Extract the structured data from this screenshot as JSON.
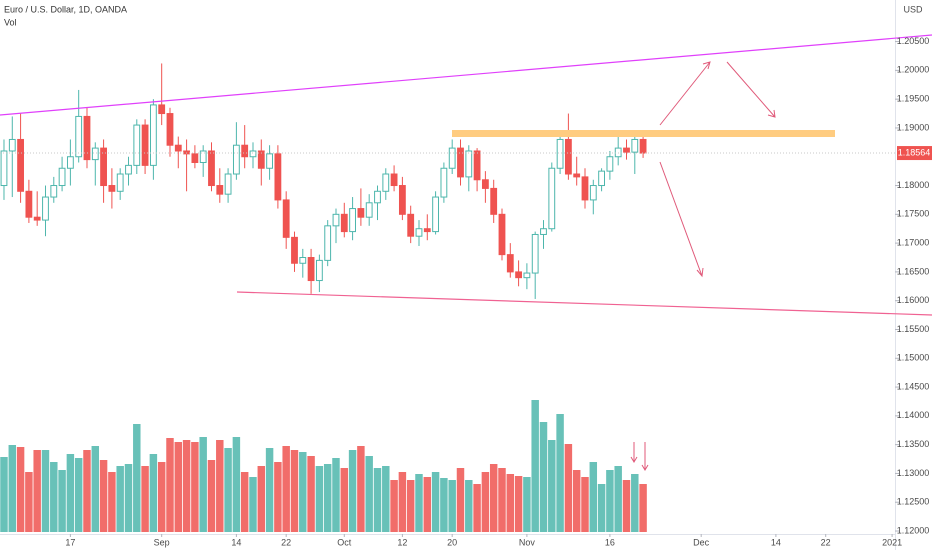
{
  "chart_data": {
    "type": "candlestick",
    "title": "Euro / U.S. Dollar, 1D, OANDA",
    "volume_label": "Vol",
    "currency": "USD",
    "up_color": "#4db6ac",
    "down_color": "#ef5350",
    "grid": false,
    "ohlc": [
      [
        1.18,
        1.188,
        1.1775,
        1.186
      ],
      [
        1.186,
        1.192,
        1.178,
        1.188
      ],
      [
        1.188,
        1.1925,
        1.177,
        1.179
      ],
      [
        1.179,
        1.181,
        1.1735,
        1.1745
      ],
      [
        1.1745,
        1.179,
        1.173,
        1.174
      ],
      [
        1.174,
        1.18,
        1.1712,
        1.178
      ],
      [
        1.178,
        1.1815,
        1.177,
        1.18
      ],
      [
        1.18,
        1.185,
        1.179,
        1.183
      ],
      [
        1.183,
        1.188,
        1.18,
        1.185
      ],
      [
        1.185,
        1.1966,
        1.184,
        1.192
      ],
      [
        1.192,
        1.1935,
        1.183,
        1.1845
      ],
      [
        1.1845,
        1.1875,
        1.18,
        1.1865
      ],
      [
        1.1865,
        1.188,
        1.177,
        1.18
      ],
      [
        1.18,
        1.183,
        1.176,
        1.179
      ],
      [
        1.179,
        1.183,
        1.1775,
        1.182
      ],
      [
        1.182,
        1.185,
        1.18,
        1.1835
      ],
      [
        1.1835,
        1.1915,
        1.182,
        1.1905
      ],
      [
        1.1905,
        1.1915,
        1.182,
        1.1835
      ],
      [
        1.1835,
        1.195,
        1.181,
        1.194
      ],
      [
        1.194,
        1.2012,
        1.1905,
        1.1925
      ],
      [
        1.1925,
        1.1935,
        1.185,
        1.187
      ],
      [
        1.187,
        1.1885,
        1.183,
        1.186
      ],
      [
        1.186,
        1.188,
        1.179,
        1.1855
      ],
      [
        1.1855,
        1.187,
        1.183,
        1.184
      ],
      [
        1.184,
        1.187,
        1.1815,
        1.186
      ],
      [
        1.186,
        1.1875,
        1.179,
        1.18
      ],
      [
        1.18,
        1.183,
        1.177,
        1.1785
      ],
      [
        1.1785,
        1.183,
        1.177,
        1.182
      ],
      [
        1.182,
        1.191,
        1.181,
        1.187
      ],
      [
        1.187,
        1.1905,
        1.183,
        1.185
      ],
      [
        1.185,
        1.1875,
        1.183,
        1.186
      ],
      [
        1.186,
        1.188,
        1.18,
        1.183
      ],
      [
        1.183,
        1.187,
        1.181,
        1.1855
      ],
      [
        1.1855,
        1.187,
        1.176,
        1.1775
      ],
      [
        1.1775,
        1.179,
        1.169,
        1.171
      ],
      [
        1.171,
        1.172,
        1.165,
        1.1665
      ],
      [
        1.1665,
        1.169,
        1.164,
        1.1675
      ],
      [
        1.1675,
        1.169,
        1.1612,
        1.1635
      ],
      [
        1.1635,
        1.168,
        1.1615,
        1.167
      ],
      [
        1.167,
        1.174,
        1.166,
        1.173
      ],
      [
        1.173,
        1.176,
        1.17,
        1.175
      ],
      [
        1.175,
        1.177,
        1.171,
        1.172
      ],
      [
        1.172,
        1.178,
        1.1705,
        1.176
      ],
      [
        1.176,
        1.1795,
        1.173,
        1.1745
      ],
      [
        1.1745,
        1.1785,
        1.173,
        1.177
      ],
      [
        1.177,
        1.18,
        1.174,
        1.179
      ],
      [
        1.179,
        1.183,
        1.1775,
        1.182
      ],
      [
        1.182,
        1.1835,
        1.179,
        1.18
      ],
      [
        1.18,
        1.1815,
        1.174,
        1.175
      ],
      [
        1.175,
        1.1765,
        1.17,
        1.1712
      ],
      [
        1.1712,
        1.174,
        1.1695,
        1.1725
      ],
      [
        1.1725,
        1.175,
        1.1705,
        1.172
      ],
      [
        1.172,
        1.179,
        1.1715,
        1.178
      ],
      [
        1.178,
        1.184,
        1.177,
        1.183
      ],
      [
        1.183,
        1.188,
        1.182,
        1.1865
      ],
      [
        1.1865,
        1.188,
        1.18,
        1.1815
      ],
      [
        1.1815,
        1.187,
        1.179,
        1.186
      ],
      [
        1.186,
        1.1865,
        1.179,
        1.181
      ],
      [
        1.181,
        1.1825,
        1.177,
        1.1795
      ],
      [
        1.1795,
        1.181,
        1.1735,
        1.175
      ],
      [
        1.175,
        1.176,
        1.167,
        1.168
      ],
      [
        1.168,
        1.17,
        1.164,
        1.165
      ],
      [
        1.165,
        1.167,
        1.1625,
        1.164
      ],
      [
        1.164,
        1.1665,
        1.162,
        1.1648
      ],
      [
        1.1648,
        1.172,
        1.1603,
        1.1715
      ],
      [
        1.1715,
        1.174,
        1.169,
        1.1725
      ],
      [
        1.1725,
        1.184,
        1.172,
        1.183
      ],
      [
        1.183,
        1.1885,
        1.182,
        1.188
      ],
      [
        1.188,
        1.1925,
        1.181,
        1.182
      ],
      [
        1.182,
        1.185,
        1.18,
        1.1815
      ],
      [
        1.1815,
        1.183,
        1.176,
        1.1775
      ],
      [
        1.1775,
        1.181,
        1.175,
        1.18
      ],
      [
        1.18,
        1.183,
        1.179,
        1.1825
      ],
      [
        1.1825,
        1.186,
        1.181,
        1.185
      ],
      [
        1.185,
        1.1895,
        1.1835,
        1.1865
      ],
      [
        1.1865,
        1.188,
        1.1845,
        1.1858
      ],
      [
        1.1858,
        1.1895,
        1.182,
        1.188
      ],
      [
        1.188,
        1.1888,
        1.1848,
        1.18564
      ]
    ],
    "volume": [
      75,
      87,
      85,
      60,
      82,
      82,
      70,
      62,
      78,
      74,
      82,
      86,
      72,
      60,
      66,
      68,
      108,
      66,
      78,
      70,
      94,
      90,
      92,
      90,
      95,
      72,
      92,
      84,
      95,
      60,
      55,
      66,
      84,
      70,
      86,
      82,
      80,
      76,
      66,
      68,
      74,
      64,
      82,
      86,
      76,
      64,
      66,
      52,
      60,
      52,
      58,
      55,
      60,
      54,
      52,
      64,
      52,
      48,
      60,
      68,
      64,
      58,
      56,
      55,
      132,
      110,
      92,
      118,
      88,
      62,
      55,
      70,
      48,
      62,
      66,
      52,
      58,
      48
    ],
    "xlim": [
      -0.48,
      107.35
    ],
    "xticks": [
      {
        "value": 8,
        "label": "17"
      },
      {
        "value": 19,
        "label": "Sep"
      },
      {
        "value": 28,
        "label": "14"
      },
      {
        "value": 34,
        "label": "22"
      },
      {
        "value": 41,
        "label": "Oct"
      },
      {
        "value": 48,
        "label": "12"
      },
      {
        "value": 54,
        "label": "20"
      },
      {
        "value": 63,
        "label": "Nov"
      },
      {
        "value": 73,
        "label": "16"
      },
      {
        "value": 84,
        "label": "Dec"
      },
      {
        "value": 93,
        "label": "14"
      },
      {
        "value": 99,
        "label": "22"
      },
      {
        "value": 107,
        "label": "2021"
      }
    ],
    "ylim": [
      1.11844,
      1.21222
    ],
    "yticks": [
      {
        "value": 1.205,
        "label": "1.20500"
      },
      {
        "value": 1.2,
        "label": "1.20000"
      },
      {
        "value": 1.195,
        "label": "1.19500"
      },
      {
        "value": 1.19,
        "label": "1.19000"
      },
      {
        "value": 1.18,
        "label": "1.18000"
      },
      {
        "value": 1.175,
        "label": "1.17500"
      },
      {
        "value": 1.17,
        "label": "1.17000"
      },
      {
        "value": 1.165,
        "label": "1.16500"
      },
      {
        "value": 1.16,
        "label": "1.16000"
      },
      {
        "value": 1.155,
        "label": "1.15500"
      },
      {
        "value": 1.15,
        "label": "1.15000"
      },
      {
        "value": 1.145,
        "label": "1.14500"
      },
      {
        "value": 1.14,
        "label": "1.14000"
      },
      {
        "value": 1.135,
        "label": "1.13500"
      },
      {
        "value": 1.13,
        "label": "1.13000"
      },
      {
        "value": 1.125,
        "label": "1.12500"
      },
      {
        "value": 1.12,
        "label": "1.12000"
      }
    ]
  }
}
